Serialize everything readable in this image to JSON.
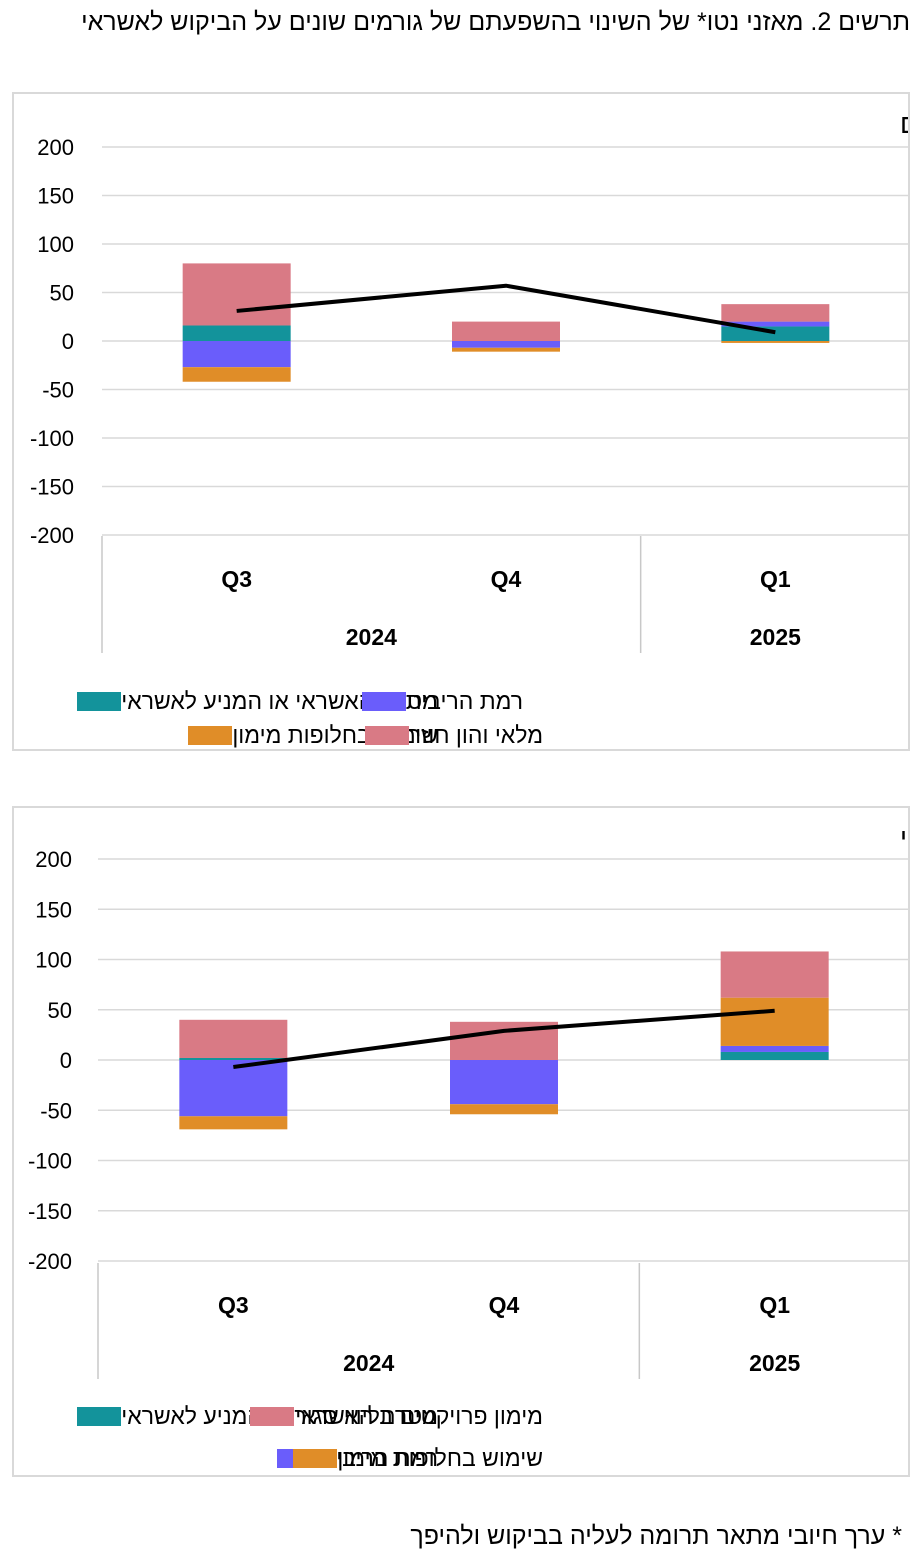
{
  "figure_title": "תרשים 2. מאזני נטו* של השינוי בהשפעתם של גורמים שונים על הביקוש לאשראי",
  "footnote": "* ערך חיובי מתאר תרומה לעליה בביקוש ולהיפך",
  "colors": {
    "teal": "#13939b",
    "blue": "#6a5dfb",
    "orange": "#e08d28",
    "pink": "#d97a85",
    "line": "#000000",
    "grid": "#d9d9d9"
  },
  "chart_data": [
    {
      "type": "bar",
      "stacked": true,
      "title": "עסקים קטנים וזעירים",
      "categories": [
        "Q3",
        "Q4",
        "Q1"
      ],
      "year_groups": [
        {
          "label": "2024",
          "categories": [
            "Q3",
            "Q4"
          ]
        },
        {
          "label": "2025",
          "categories": [
            "Q1"
          ]
        }
      ],
      "ylim": [
        -200,
        200
      ],
      "yticks": [
        "200",
        "150",
        "100",
        "50",
        "0",
        "-50",
        "-100",
        "-150",
        "-200"
      ],
      "grid": true,
      "legend_position": "bottom",
      "series": [
        {
          "name": "מטרת האשראי או המניע לאשראי",
          "color": "teal",
          "values": [
            16,
            0,
            15
          ]
        },
        {
          "name": "רמת הריבית",
          "color": "blue",
          "values": [
            -27,
            -7,
            5
          ]
        },
        {
          "name": "שימוש בחלופות מימון",
          "color": "orange",
          "values": [
            -15,
            -4,
            -2
          ]
        },
        {
          "name": "מלאי והון חוזר",
          "color": "pink",
          "values": [
            64,
            20,
            18
          ]
        }
      ],
      "line": {
        "name": "net balance",
        "values": [
          31,
          57,
          9
        ]
      }
    },
    {
      "type": "bar",
      "stacked": true,
      "title": "בינוי",
      "categories": [
        "Q3",
        "Q4",
        "Q1"
      ],
      "year_groups": [
        {
          "label": "2024",
          "categories": [
            "Q3",
            "Q4"
          ]
        },
        {
          "label": "2025",
          "categories": [
            "Q1"
          ]
        }
      ],
      "ylim": [
        -200,
        200
      ],
      "yticks": [
        "200",
        "150",
        "100",
        "50",
        "0",
        "-50",
        "-100",
        "-150",
        "-200"
      ],
      "grid": true,
      "legend_position": "bottom",
      "series": [
        {
          "name": "מטרת האשראי או המניע לאשראי",
          "color": "teal",
          "values": [
            2,
            0,
            8
          ]
        },
        {
          "name": "רמת הריבית",
          "color": "blue",
          "values": [
            -56,
            -44,
            6
          ]
        },
        {
          "name": "שימוש בחלופות מימון",
          "color": "orange",
          "values": [
            -13,
            -10,
            48
          ]
        },
        {
          "name": "מימון פרויקטים בליווי סגור",
          "color": "pink",
          "values": [
            38,
            38,
            46
          ]
        }
      ],
      "line": {
        "name": "net balance",
        "values": [
          -7,
          29,
          49
        ]
      }
    }
  ],
  "legends": [
    {
      "items": [
        {
          "label": "מטרת האשראי או המניע לאשראי",
          "color": "teal"
        },
        {
          "label": "רמת הריבית",
          "color": "blue"
        },
        {
          "label": "שימוש בחלופות מימון",
          "color": "orange"
        },
        {
          "label": "מלאי והון חוזר",
          "color": "pink"
        }
      ]
    },
    {
      "items": [
        {
          "label": "מטרת האשראי או המניע לאשראי",
          "color": "teal"
        },
        {
          "label": "מימון פרויקטים בליווי סגור",
          "color": "pink"
        },
        {
          "label": "רמת הריבית",
          "color": "blue"
        },
        {
          "label": "שימוש בחלופות מימון",
          "color": "orange"
        }
      ]
    }
  ]
}
